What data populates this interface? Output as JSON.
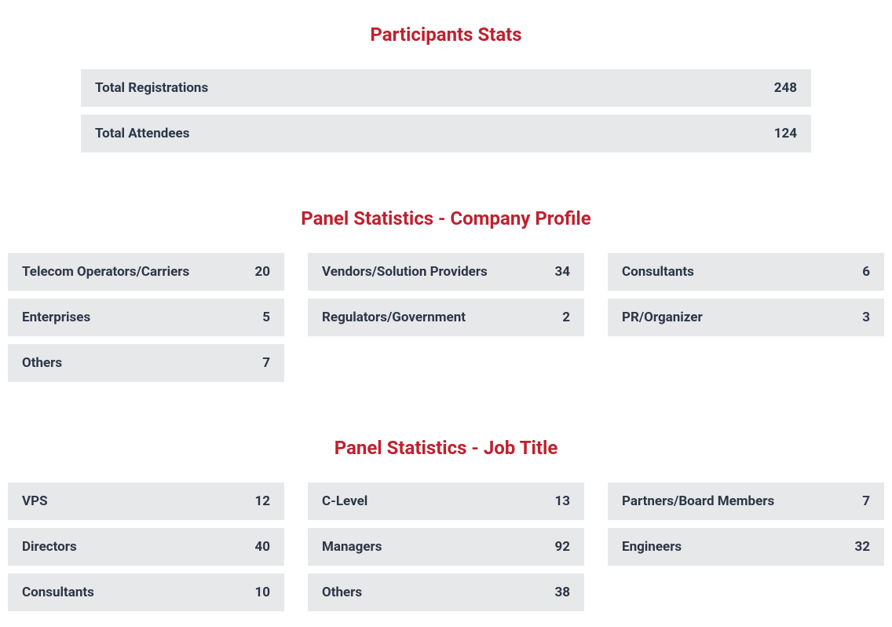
{
  "colors": {
    "heading": "#c0202e",
    "row_bg": "#e7e8ea",
    "text": "#2b3646",
    "page_bg": "#ffffff"
  },
  "participants": {
    "title": "Participants Stats",
    "rows": [
      {
        "label": "Total Registrations",
        "value": "248"
      },
      {
        "label": "Total Attendees",
        "value": "124"
      }
    ]
  },
  "company_profile": {
    "title": "Panel Statistics - Company Profile",
    "columns": [
      [
        {
          "label": "Telecom Operators/Carriers",
          "value": "20"
        },
        {
          "label": "Enterprises",
          "value": "5"
        },
        {
          "label": "Others",
          "value": "7"
        }
      ],
      [
        {
          "label": "Vendors/Solution Providers",
          "value": "34"
        },
        {
          "label": "Regulators/Government",
          "value": "2"
        }
      ],
      [
        {
          "label": "Consultants",
          "value": "6"
        },
        {
          "label": "PR/Organizer",
          "value": "3"
        }
      ]
    ]
  },
  "job_title": {
    "title": "Panel Statistics - Job Title",
    "columns": [
      [
        {
          "label": "VPS",
          "value": "12"
        },
        {
          "label": "Directors",
          "value": "40"
        },
        {
          "label": "Consultants",
          "value": "10"
        }
      ],
      [
        {
          "label": "C-Level",
          "value": "13"
        },
        {
          "label": "Managers",
          "value": "92"
        },
        {
          "label": "Others",
          "value": "38"
        }
      ],
      [
        {
          "label": "Partners/Board Members",
          "value": "7"
        },
        {
          "label": "Engineers",
          "value": "32"
        }
      ]
    ]
  }
}
